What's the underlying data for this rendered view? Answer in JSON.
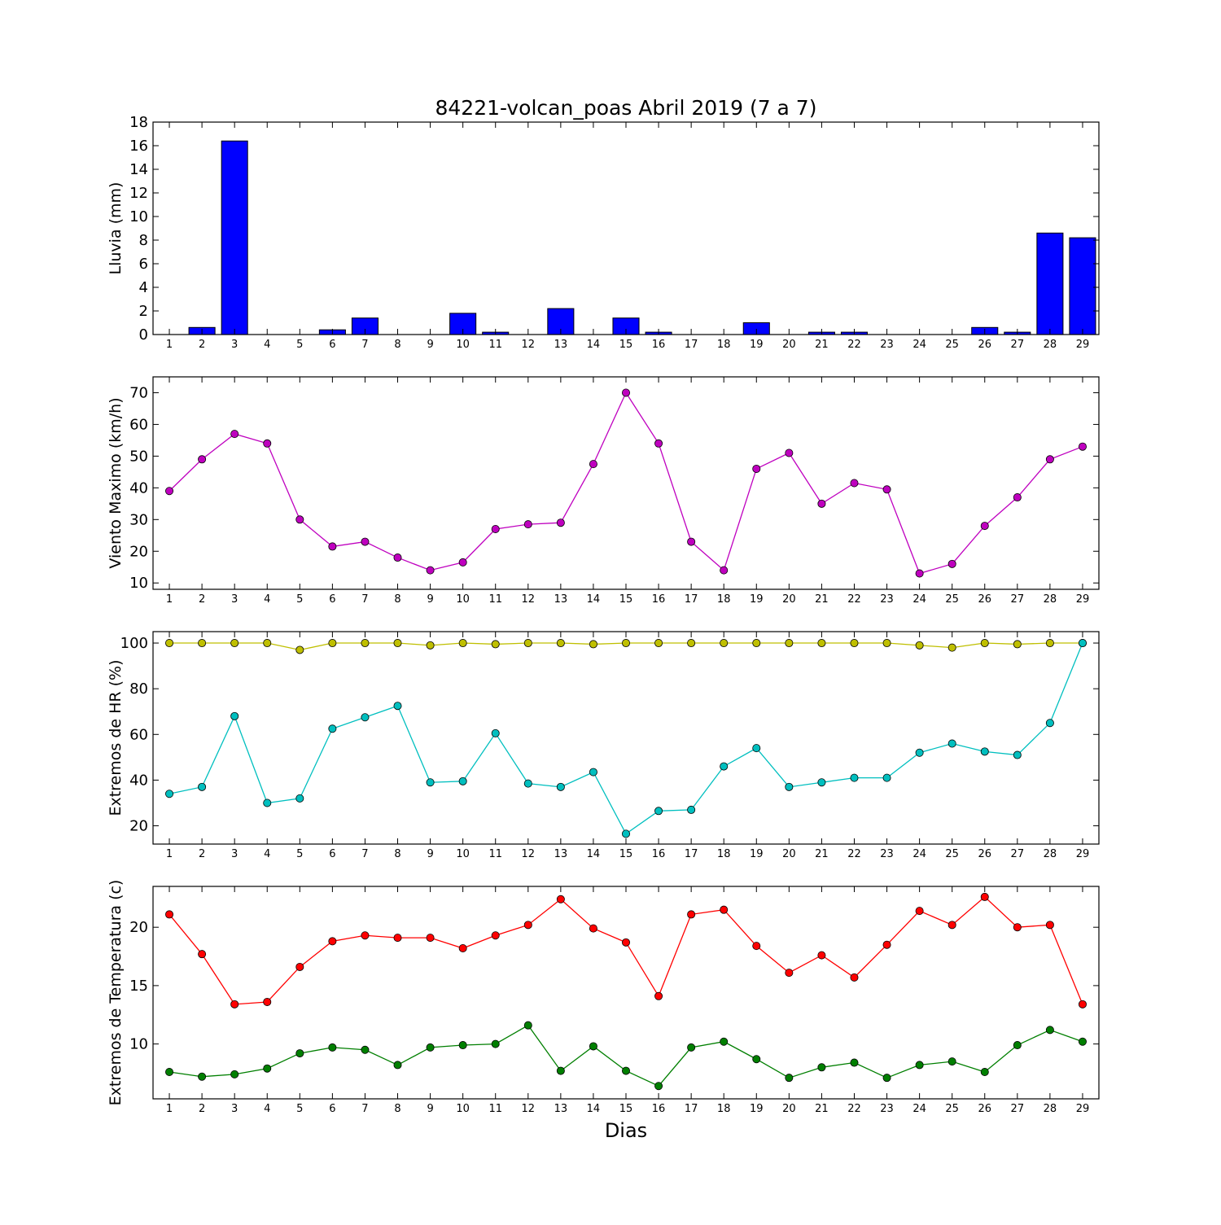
{
  "figure": {
    "title": "84221-volcan_poas Abril 2019  (7 a 7)",
    "xlabel": "Dias"
  },
  "chart_data": [
    {
      "type": "bar",
      "ylabel": "Lluvia (mm)",
      "ylim": [
        0,
        18
      ],
      "yticks": [
        0,
        2,
        4,
        6,
        8,
        10,
        12,
        14,
        16,
        18
      ],
      "categories": [
        "1",
        "2",
        "3",
        "4",
        "5",
        "6",
        "7",
        "8",
        "9",
        "10",
        "11",
        "12",
        "13",
        "14",
        "15",
        "16",
        "17",
        "18",
        "19",
        "20",
        "21",
        "22",
        "23",
        "24",
        "25",
        "26",
        "27",
        "28",
        "29"
      ],
      "series": [
        {
          "color": "#0000ff",
          "values": [
            0,
            0.6,
            16.4,
            0,
            0,
            0.4,
            1.4,
            0,
            0,
            1.8,
            0.2,
            0,
            2.2,
            0,
            1.4,
            0.2,
            0,
            0,
            1.0,
            0,
            0.2,
            0.2,
            0,
            0,
            0,
            0.6,
            0.2,
            8.6,
            8.2
          ]
        }
      ]
    },
    {
      "type": "line",
      "ylabel": "Viento Maximo (km/h)",
      "ylim": [
        8,
        75
      ],
      "yticks": [
        10,
        20,
        30,
        40,
        50,
        60,
        70
      ],
      "x": [
        1,
        2,
        3,
        4,
        5,
        6,
        7,
        8,
        9,
        10,
        11,
        12,
        13,
        14,
        15,
        16,
        17,
        18,
        19,
        20,
        21,
        22,
        23,
        24,
        25,
        26,
        27,
        28,
        29
      ],
      "series": [
        {
          "color": "#bf00bf",
          "values": [
            39,
            49,
            57,
            54,
            30,
            21.5,
            23,
            18,
            14,
            16.5,
            27,
            28.5,
            29,
            47.5,
            70,
            54,
            23,
            14,
            46,
            51,
            35,
            41.5,
            39.5,
            13,
            16,
            28,
            37,
            49,
            53
          ]
        }
      ]
    },
    {
      "type": "line",
      "ylabel": "Extremos de HR (%)",
      "ylim": [
        12,
        105
      ],
      "yticks": [
        20,
        40,
        60,
        80,
        100
      ],
      "x": [
        1,
        2,
        3,
        4,
        5,
        6,
        7,
        8,
        9,
        10,
        11,
        12,
        13,
        14,
        15,
        16,
        17,
        18,
        19,
        20,
        21,
        22,
        23,
        24,
        25,
        26,
        27,
        28,
        29
      ],
      "series": [
        {
          "color": "#bfbf00",
          "values": [
            100,
            100,
            100,
            100,
            97,
            100,
            100,
            100,
            99,
            100,
            99.5,
            100,
            100,
            99.5,
            100,
            100,
            100,
            100,
            100,
            100,
            100,
            100,
            100,
            99,
            98,
            100,
            99.5,
            100,
            100
          ]
        },
        {
          "color": "#00bfbf",
          "values": [
            34,
            37,
            68,
            30,
            32,
            62.5,
            67.5,
            72.5,
            39,
            39.5,
            60.5,
            38.5,
            37,
            43.5,
            16.5,
            26.5,
            27,
            46,
            54,
            37,
            39,
            41,
            41,
            52,
            56,
            52.5,
            51,
            65,
            100
          ]
        }
      ]
    },
    {
      "type": "line",
      "ylabel": "Extremos de Temperatura (c)",
      "ylim": [
        5.3,
        23.5
      ],
      "yticks": [
        10,
        15,
        20
      ],
      "x": [
        1,
        2,
        3,
        4,
        5,
        6,
        7,
        8,
        9,
        10,
        11,
        12,
        13,
        14,
        15,
        16,
        17,
        18,
        19,
        20,
        21,
        22,
        23,
        24,
        25,
        26,
        27,
        28,
        29
      ],
      "series": [
        {
          "color": "#ff0000",
          "values": [
            21.1,
            17.7,
            13.4,
            13.6,
            16.6,
            18.8,
            19.3,
            19.1,
            19.1,
            18.2,
            19.3,
            20.2,
            22.4,
            19.9,
            18.7,
            14.1,
            21.1,
            21.5,
            18.4,
            16.1,
            17.6,
            15.7,
            18.5,
            21.4,
            20.2,
            22.6,
            20.0,
            20.2,
            13.4
          ]
        },
        {
          "color": "#007f00",
          "values": [
            7.6,
            7.2,
            7.4,
            7.9,
            9.2,
            9.7,
            9.5,
            8.2,
            9.7,
            9.9,
            10.0,
            11.6,
            7.7,
            9.8,
            7.7,
            6.4,
            9.7,
            10.2,
            8.7,
            7.1,
            8.0,
            8.4,
            7.1,
            8.2,
            8.5,
            7.6,
            9.9,
            11.2,
            10.2
          ]
        }
      ]
    }
  ]
}
